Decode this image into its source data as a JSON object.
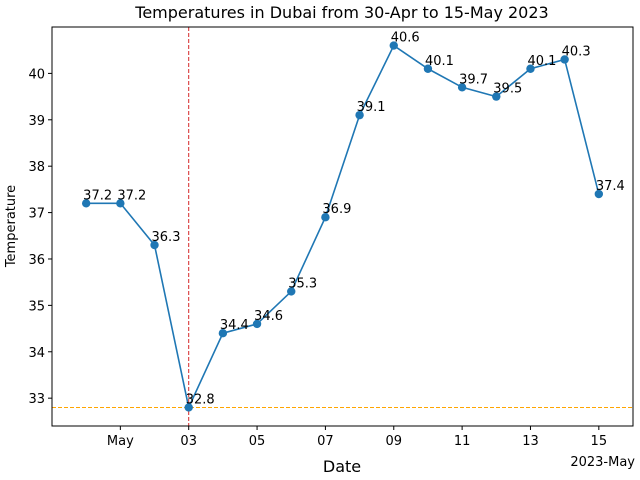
{
  "chart_data": {
    "type": "line",
    "title": "Temperatures in Dubai from 30-Apr to 15-May 2023",
    "xlabel": "Date",
    "ylabel": "Temperature",
    "x_offset_label": "2023-May",
    "x": [
      "2023-04-30",
      "2023-05-01",
      "2023-05-02",
      "2023-05-03",
      "2023-05-04",
      "2023-05-05",
      "2023-05-06",
      "2023-05-07",
      "2023-05-08",
      "2023-05-09",
      "2023-05-10",
      "2023-05-11",
      "2023-05-12",
      "2023-05-13",
      "2023-05-14",
      "2023-05-15"
    ],
    "series": [
      {
        "values": [
          37.2,
          37.2,
          36.3,
          32.8,
          34.4,
          34.6,
          35.3,
          36.9,
          39.1,
          40.6,
          40.1,
          39.7,
          39.5,
          40.1,
          40.3,
          37.4
        ],
        "color": "#1f77b4",
        "data_labels": [
          "37.2",
          "37.2",
          "36.3",
          "32.8",
          "34.4",
          "34.6",
          "35.3",
          "36.9",
          "39.1",
          "40.6",
          "40.1",
          "39.7",
          "39.5",
          "40.1",
          "40.3",
          "37.4"
        ]
      }
    ],
    "xlim": [
      "2023-04-29",
      "2023-05-16"
    ],
    "ylim": [
      32.4,
      41.0
    ],
    "x_ticks": [
      {
        "x": "2023-05-01",
        "label": "May"
      },
      {
        "x": "2023-05-03",
        "label": "03"
      },
      {
        "x": "2023-05-05",
        "label": "05"
      },
      {
        "x": "2023-05-07",
        "label": "07"
      },
      {
        "x": "2023-05-09",
        "label": "09"
      },
      {
        "x": "2023-05-11",
        "label": "11"
      },
      {
        "x": "2023-05-13",
        "label": "13"
      },
      {
        "x": "2023-05-15",
        "label": "15"
      }
    ],
    "y_ticks": [
      33,
      34,
      35,
      36,
      37,
      38,
      39,
      40
    ],
    "vline": {
      "x": "2023-05-03",
      "color": "#d62728",
      "style": "dashed"
    },
    "hline": {
      "y": 32.8,
      "color": "#ffa500",
      "style": "dashed"
    },
    "grid": false,
    "legend": "none"
  }
}
